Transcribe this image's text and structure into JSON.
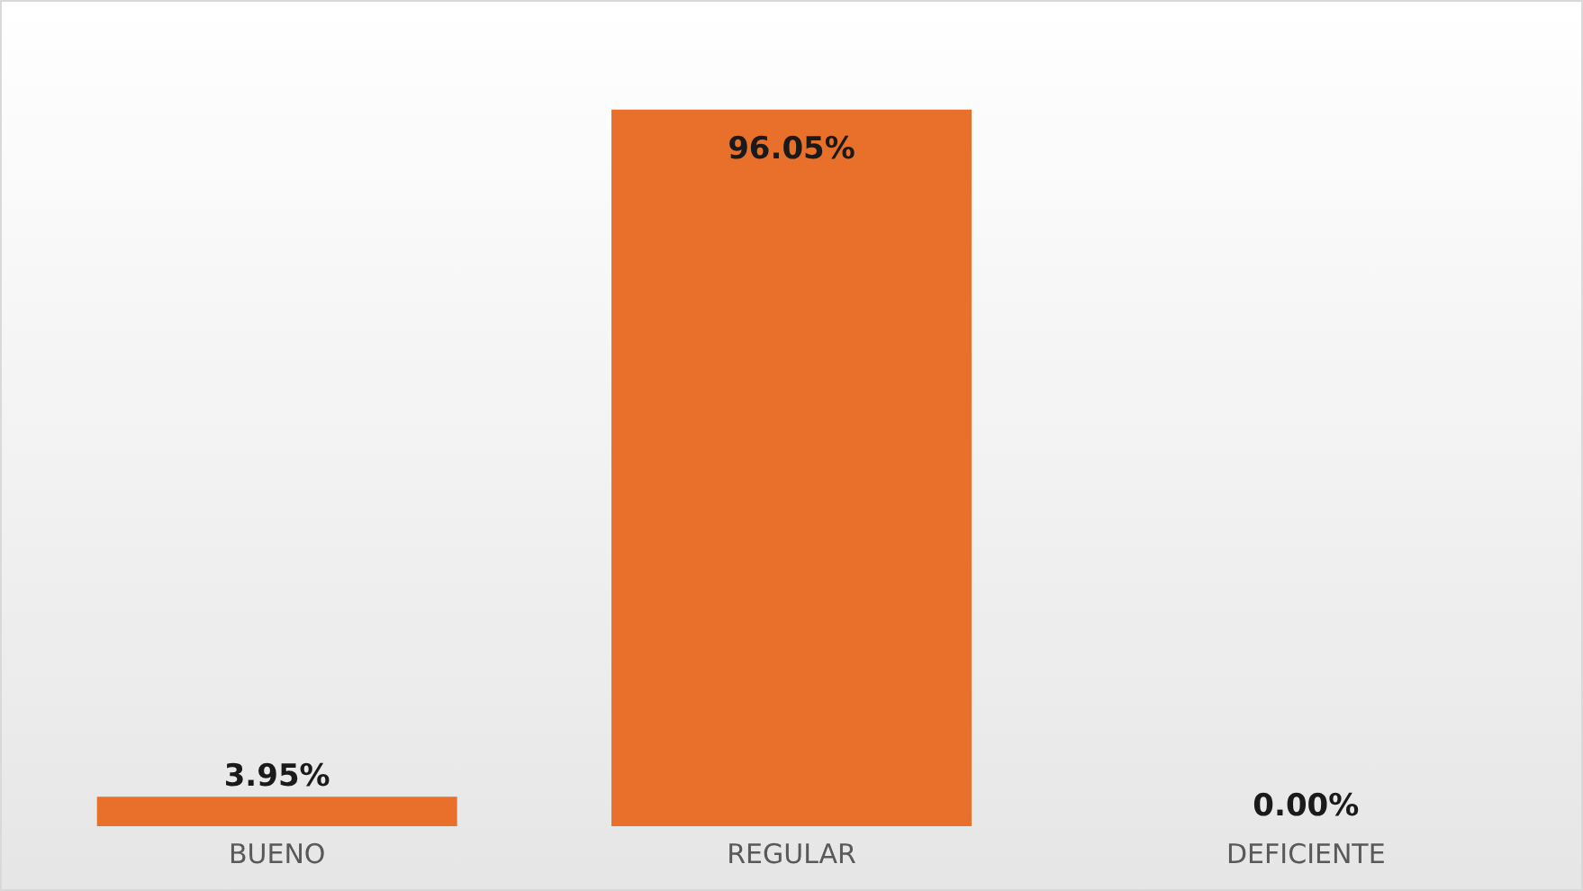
{
  "chart_data": {
    "type": "bar",
    "categories": [
      "BUENO",
      "REGULAR",
      "DEFICIENTE"
    ],
    "values": [
      3.95,
      96.05,
      0.0
    ],
    "value_labels": [
      "3.95%",
      "96.05%",
      "0.00%"
    ],
    "color": "#e8702a"
  }
}
